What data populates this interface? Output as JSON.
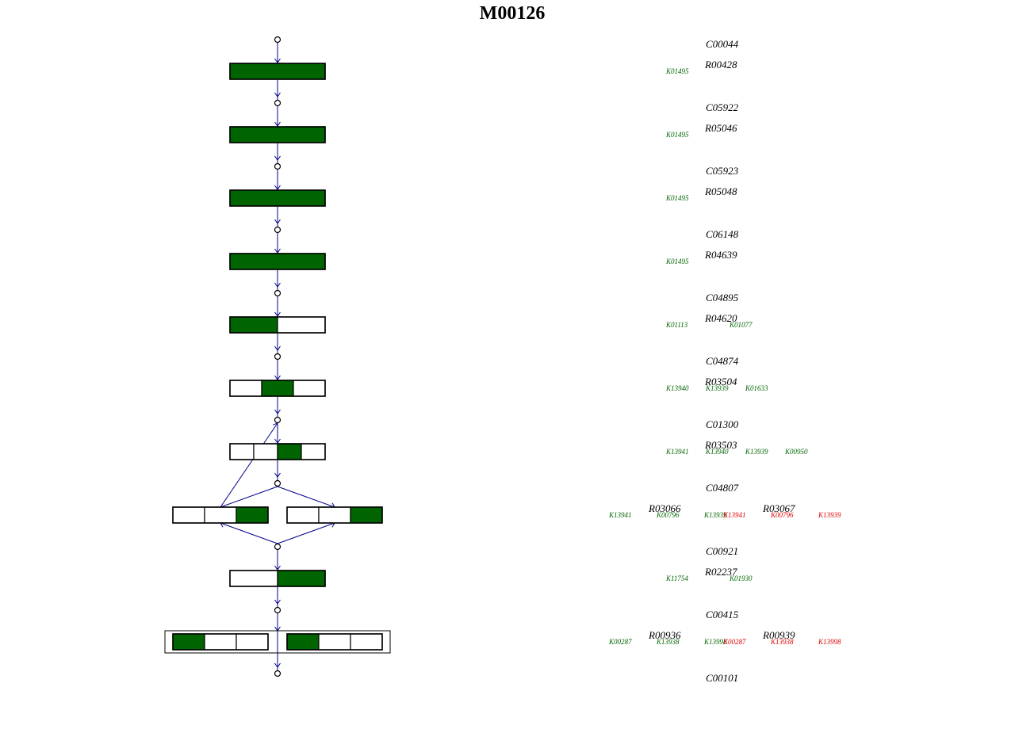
{
  "title": "M00126",
  "colors": {
    "present": "#006400",
    "absent": "#dd0000",
    "line": "#00008b",
    "box_border": "#000000"
  },
  "compounds": [
    "C00044",
    "C05922",
    "C05923",
    "C06148",
    "C04895",
    "C04874",
    "C01300",
    "C04807",
    "C00921",
    "C00415",
    "C00101"
  ],
  "steps": [
    {
      "reactions": [
        {
          "id": "R00428",
          "segments": [
            1
          ]
        }
      ],
      "kos": [
        {
          "id": "K01495",
          "present": true
        }
      ]
    },
    {
      "reactions": [
        {
          "id": "R05046",
          "segments": [
            1
          ]
        }
      ],
      "kos": [
        {
          "id": "K01495",
          "present": true
        }
      ]
    },
    {
      "reactions": [
        {
          "id": "R05048",
          "segments": [
            1
          ]
        }
      ],
      "kos": [
        {
          "id": "K01495",
          "present": true
        }
      ]
    },
    {
      "reactions": [
        {
          "id": "R04639",
          "segments": [
            1
          ]
        }
      ],
      "kos": [
        {
          "id": "K01495",
          "present": true
        }
      ]
    },
    {
      "reactions": [
        {
          "id": "R04620",
          "segments": [
            1,
            0
          ]
        }
      ],
      "kos": [
        {
          "id": "K01113",
          "present": true
        },
        {
          "id": "K01077",
          "present": true
        }
      ]
    },
    {
      "reactions": [
        {
          "id": "R03504",
          "segments": [
            0,
            1,
            0
          ]
        }
      ],
      "kos": [
        {
          "id": "K13940",
          "present": true
        },
        {
          "id": "K13939",
          "present": true
        },
        {
          "id": "K01633",
          "present": true
        }
      ]
    },
    {
      "reactions": [
        {
          "id": "R03503",
          "segments": [
            0,
            0,
            1,
            0
          ]
        }
      ],
      "kos": [
        {
          "id": "K13941",
          "present": true
        },
        {
          "id": "K13940",
          "present": true
        },
        {
          "id": "K13939",
          "present": true
        },
        {
          "id": "K00950",
          "present": true
        }
      ]
    },
    {
      "reactions": [
        {
          "id": "R03066",
          "segments": [
            0,
            0,
            1
          ],
          "kos": [
            {
              "id": "K13941",
              "present": true
            },
            {
              "id": "K00796",
              "present": true
            },
            {
              "id": "K13939",
              "present": true
            }
          ]
        },
        {
          "id": "R03067",
          "segments": [
            0,
            0,
            1
          ],
          "kos": [
            {
              "id": "K13941",
              "present": false
            },
            {
              "id": "K00796",
              "present": false
            },
            {
              "id": "K13939",
              "present": false
            }
          ]
        }
      ]
    },
    {
      "reactions": [
        {
          "id": "R02237",
          "segments": [
            0,
            1
          ]
        }
      ],
      "kos": [
        {
          "id": "K11754",
          "present": true
        },
        {
          "id": "K01930",
          "present": true
        }
      ]
    },
    {
      "reactions": [
        {
          "id": "R00936",
          "segments": [
            1,
            0,
            0
          ],
          "kos": [
            {
              "id": "K00287",
              "present": true
            },
            {
              "id": "K13938",
              "present": true
            },
            {
              "id": "K13998",
              "present": true
            }
          ]
        },
        {
          "id": "R00939",
          "segments": [
            1,
            0,
            0
          ],
          "kos": [
            {
              "id": "K00287",
              "present": false
            },
            {
              "id": "K13938",
              "present": false
            },
            {
              "id": "K13998",
              "present": false
            }
          ]
        }
      ],
      "grouped": true
    }
  ]
}
